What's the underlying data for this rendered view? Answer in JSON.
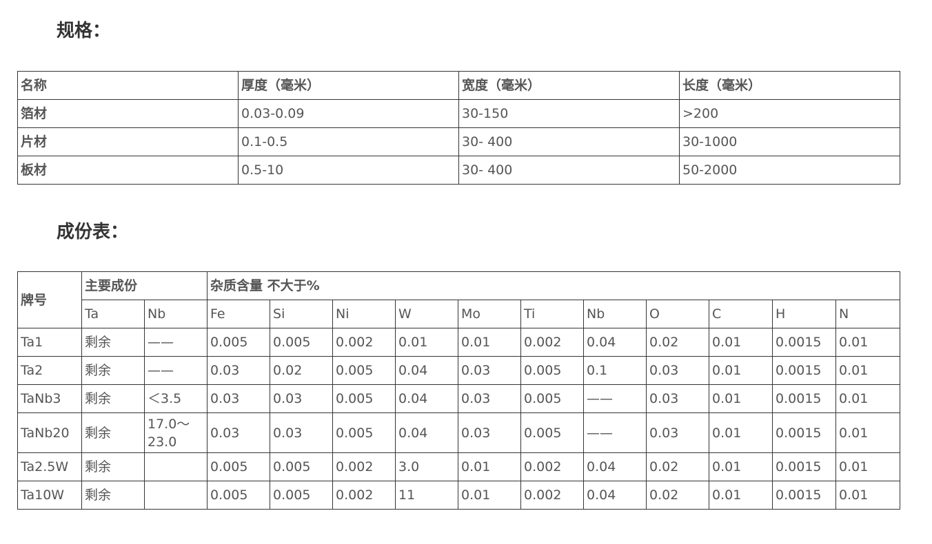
{
  "spec": {
    "title": "规格：",
    "headers": [
      "名称",
      "厚度（毫米）",
      "宽度（毫米）",
      "长度（毫米）"
    ],
    "rows": [
      [
        "箔材",
        "0.03-0.09",
        "30-150",
        ">200"
      ],
      [
        "片材",
        "0.1-0.5",
        "30- 400",
        "30-1000"
      ],
      [
        "板材",
        "0.5-10",
        "30- 400",
        "50-2000"
      ]
    ]
  },
  "composition": {
    "title": "成份表：",
    "grade_header": "牌号",
    "main_header": "主要成份",
    "impurity_header": "杂质含量  不大于%",
    "sub_headers": [
      "Ta",
      "Nb",
      "Fe",
      "Si",
      "Ni",
      "W",
      "Mo",
      "Ti",
      "Nb",
      "O",
      "C",
      "H",
      "N"
    ],
    "rows": [
      [
        "Ta1",
        "剩余",
        "——",
        "0.005",
        "0.005",
        "0.002",
        "0.01",
        "0.01",
        "0.002",
        "0.04",
        "0.02",
        "0.01",
        "0.0015",
        "0.01"
      ],
      [
        "Ta2",
        "剩余",
        "——",
        "0.03",
        "0.02",
        "0.005",
        "0.04",
        "0.03",
        "0.005",
        "0.1",
        "0.03",
        "0.01",
        "0.0015",
        "0.01"
      ],
      [
        "TaNb3",
        "剩余",
        "＜3.5",
        "0.03",
        "0.03",
        "0.005",
        "0.04",
        "0.03",
        "0.005",
        "——",
        "0.03",
        "0.01",
        "0.0015",
        "0.01"
      ],
      [
        "TaNb20",
        "剩余",
        "17.0～23.0",
        "0.03",
        "0.03",
        "0.005",
        "0.04",
        "0.03",
        "0.005",
        "——",
        "0.03",
        "0.01",
        "0.0015",
        "0.01"
      ],
      [
        "Ta2.5W",
        "剩余",
        "",
        "0.005",
        "0.005",
        "0.002",
        "3.0",
        "0.01",
        "0.002",
        "0.04",
        "0.02",
        "0.01",
        "0.0015",
        "0.01"
      ],
      [
        "Ta10W",
        "剩余",
        "",
        "0.005",
        "0.005",
        "0.002",
        "11",
        "0.01",
        "0.002",
        "0.04",
        "0.02",
        "0.01",
        "0.0015",
        "0.01"
      ]
    ]
  }
}
